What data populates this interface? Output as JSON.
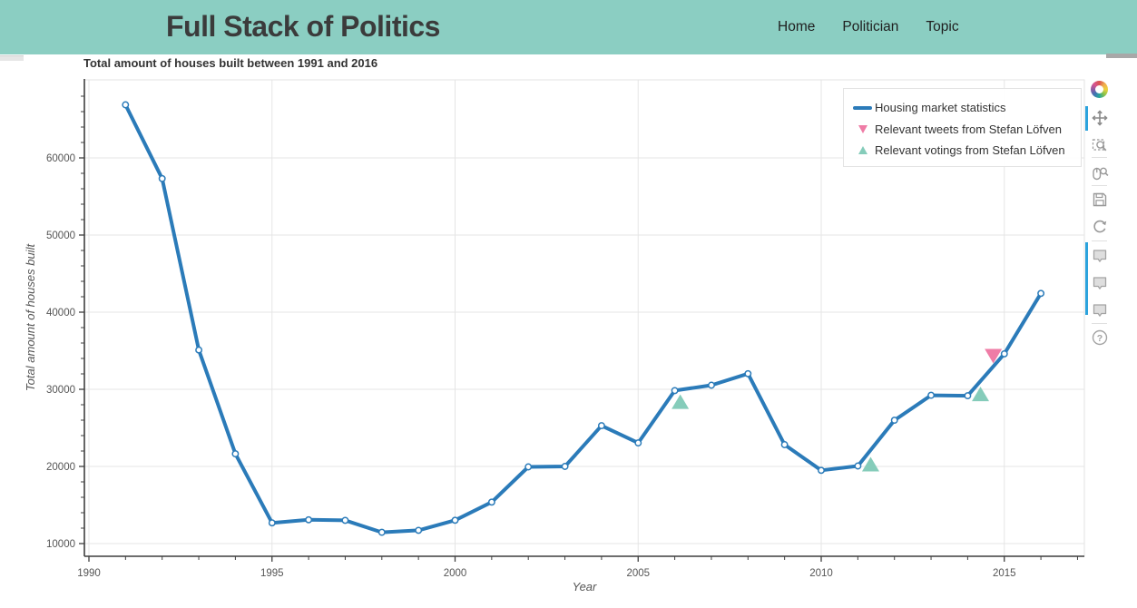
{
  "page": {
    "background": "#ffffff"
  },
  "header": {
    "background_color": "#8bcec2",
    "title": "Full Stack of Politics",
    "nav_items": [
      {
        "label": "Home"
      },
      {
        "label": "Politician"
      },
      {
        "label": "Topic"
      }
    ]
  },
  "chart_data": {
    "type": "line",
    "title": "Total amount of houses built between 1991 and 2016",
    "xlabel": "Year",
    "ylabel": "Total amount of houses built",
    "x_range": [
      1989.9,
      2017.2
    ],
    "y_range": [
      8300,
      70100
    ],
    "x_major_ticks": [
      1990,
      1995,
      2000,
      2005,
      2010,
      2015
    ],
    "x_minor_tick_step": 1,
    "y_major_ticks": [
      10000,
      20000,
      30000,
      40000,
      50000,
      60000
    ],
    "y_minor_tick_step": 2000,
    "grid": true,
    "legend_position": "top-right",
    "series": [
      {
        "name": "Housing market statistics",
        "type": "line",
        "marker": "open-circle",
        "color": "#2b7bb9",
        "x": [
          1991,
          1992,
          1993,
          1994,
          1995,
          1996,
          1997,
          1998,
          1999,
          2000,
          2001,
          2002,
          2003,
          2004,
          2005,
          2006,
          2007,
          2008,
          2009,
          2010,
          2011,
          2012,
          2013,
          2014,
          2015,
          2016
        ],
        "values": [
          66886,
          57319,
          35089,
          21630,
          12678,
          13077,
          13007,
          11459,
          11712,
          13023,
          15373,
          19942,
          20000,
          25285,
          23045,
          29832,
          30527,
          32021,
          22821,
          19500,
          20064,
          25993,
          29225,
          29164,
          34603,
          42441
        ]
      },
      {
        "name": "Relevant tweets from Stefan Löfven",
        "type": "scatter",
        "marker": "triangle-down",
        "color": "#ef7ca6",
        "points": [
          {
            "x": 2014.7,
            "y": 34300
          }
        ]
      },
      {
        "name": "Relevant votings from Stefan Löfven",
        "type": "scatter",
        "marker": "triangle-up",
        "color": "#85ccba",
        "points": [
          {
            "x": 2006.15,
            "y": 28400
          },
          {
            "x": 2011.35,
            "y": 20300
          },
          {
            "x": 2014.35,
            "y": 29400
          }
        ]
      }
    ]
  },
  "toolbar": {
    "active_color": "#2ca3dd",
    "tools": [
      {
        "name": "pan",
        "active": true
      },
      {
        "name": "box-zoom",
        "active": false
      },
      {
        "name": "wheel-zoom",
        "active": false
      },
      {
        "name": "save",
        "active": false
      },
      {
        "name": "reset",
        "active": false
      },
      {
        "name": "hover-housing",
        "active": true
      },
      {
        "name": "hover-tweets",
        "active": true
      },
      {
        "name": "hover-votings",
        "active": true
      },
      {
        "name": "help",
        "active": false
      }
    ]
  }
}
